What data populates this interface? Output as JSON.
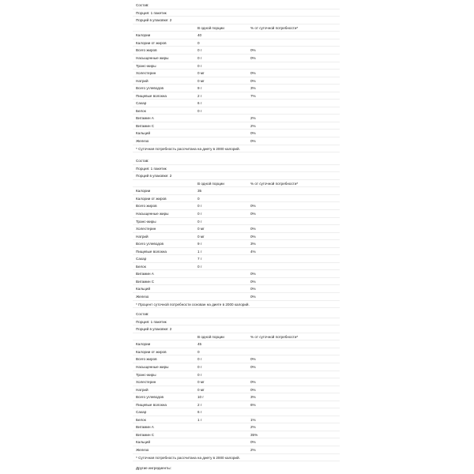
{
  "tables": [
    {
      "composition_label": "Состав:",
      "serving": "Порция: 1 пакетик",
      "servings_per_pack": "Порций в упаковке: 2",
      "header": {
        "per_serving": "В одной порции",
        "daily_value": "% от суточной потребности*"
      },
      "rows": [
        {
          "name": "Калории",
          "amount": "40",
          "dv": ""
        },
        {
          "name": "Калории от жиров",
          "amount": "0",
          "dv": ""
        },
        {
          "name": "Всего жиров",
          "amount": "0 г",
          "dv": "0%"
        },
        {
          "name": "Насыщенные жиры",
          "amount": "0 г",
          "dv": "0%"
        },
        {
          "name": "Транс-жиры",
          "amount": "0 г",
          "dv": ""
        },
        {
          "name": "Холестерин",
          "amount": "0 мг",
          "dv": "0%"
        },
        {
          "name": "Натрий",
          "amount": "0 мг",
          "dv": "0%"
        },
        {
          "name": "Всего углеводов",
          "amount": "9 г",
          "dv": "3%"
        },
        {
          "name": "Пищевые волокна",
          "amount": "2 г",
          "dv": "7%"
        },
        {
          "name": "Сахар",
          "amount": "6 г",
          "dv": ""
        },
        {
          "name": "Белок",
          "amount": "0 г",
          "dv": ""
        },
        {
          "name": "Витамин A",
          "amount": "",
          "dv": "2%"
        },
        {
          "name": "Витамин C",
          "amount": "",
          "dv": "2%"
        },
        {
          "name": "Кальций",
          "amount": "",
          "dv": "0%"
        },
        {
          "name": "Железо",
          "amount": "",
          "dv": "0%"
        }
      ],
      "footnote": "* Суточная потребность рассчитана на диету в 2000 калорий."
    },
    {
      "composition_label": "Состав:",
      "serving": "Порция: 1 пакетик",
      "servings_per_pack": "Порций в упаковке: 2",
      "header": {
        "per_serving": "В одной порции",
        "daily_value": "% от суточной потребности*"
      },
      "rows": [
        {
          "name": "Калории",
          "amount": "35",
          "dv": ""
        },
        {
          "name": "Калории от жиров",
          "amount": "0",
          "dv": ""
        },
        {
          "name": "Всего жиров",
          "amount": "0 г",
          "dv": "0%"
        },
        {
          "name": "Насыщенные жиры",
          "amount": "0 г",
          "dv": "0%"
        },
        {
          "name": "Транс-жиры",
          "amount": "0 г",
          "dv": ""
        },
        {
          "name": "Холестерин",
          "amount": "0 мг",
          "dv": "0%"
        },
        {
          "name": "Натрий",
          "amount": "0 мг",
          "dv": "0%"
        },
        {
          "name": "Всего углеводов",
          "amount": "9 г",
          "dv": "3%"
        },
        {
          "name": "Пищевые волокна",
          "amount": "1 г",
          "dv": "4%"
        },
        {
          "name": "Сахар",
          "amount": "7 г",
          "dv": ""
        },
        {
          "name": "Белок",
          "amount": "0 г",
          "dv": ""
        },
        {
          "name": "Витамин A",
          "amount": "",
          "dv": "0%"
        },
        {
          "name": "Витамин C",
          "amount": "",
          "dv": "0%"
        },
        {
          "name": "Кальций",
          "amount": "",
          "dv": "0%"
        },
        {
          "name": "Железо",
          "amount": "",
          "dv": "0%"
        }
      ],
      "footnote": "* Процент суточной потребности основан на диете в 2000 калорий."
    },
    {
      "composition_label": "Состав:",
      "serving": "Порция: 1 пакетик",
      "servings_per_pack": "Порций в упаковке: 2",
      "header": {
        "per_serving": "В одной порции",
        "daily_value": "% от суточной потребности*"
      },
      "rows": [
        {
          "name": "Калории",
          "amount": "45",
          "dv": ""
        },
        {
          "name": "Калории от жиров",
          "amount": "0",
          "dv": ""
        },
        {
          "name": "Всего жиров",
          "amount": "0 г",
          "dv": "0%"
        },
        {
          "name": "Насыщенные жиры",
          "amount": "0 г",
          "dv": "0%"
        },
        {
          "name": "Транс-жиры",
          "amount": "0 г",
          "dv": ""
        },
        {
          "name": "Холестерин",
          "amount": "0 мг",
          "dv": "0%"
        },
        {
          "name": "Натрий",
          "amount": "0 мг",
          "dv": "0%"
        },
        {
          "name": "Всего углеводов",
          "amount": "10 г",
          "dv": "3%"
        },
        {
          "name": "Пищевые волокна",
          "amount": "2 г",
          "dv": "6%"
        },
        {
          "name": "Сахар",
          "amount": "6 г",
          "dv": ""
        },
        {
          "name": "Белок",
          "amount": "1 г",
          "dv": "1%"
        },
        {
          "name": "Витамин A",
          "amount": "",
          "dv": "2%"
        },
        {
          "name": "Витамин C",
          "amount": "",
          "dv": "35%"
        },
        {
          "name": "Кальций",
          "amount": "",
          "dv": "0%"
        },
        {
          "name": "Железо",
          "amount": "",
          "dv": "2%"
        }
      ],
      "footnote": "* Суточная потребность рассчитана на диету в 2000 калорий."
    }
  ],
  "other_ingredients_label": "Другие ингредиенты:"
}
